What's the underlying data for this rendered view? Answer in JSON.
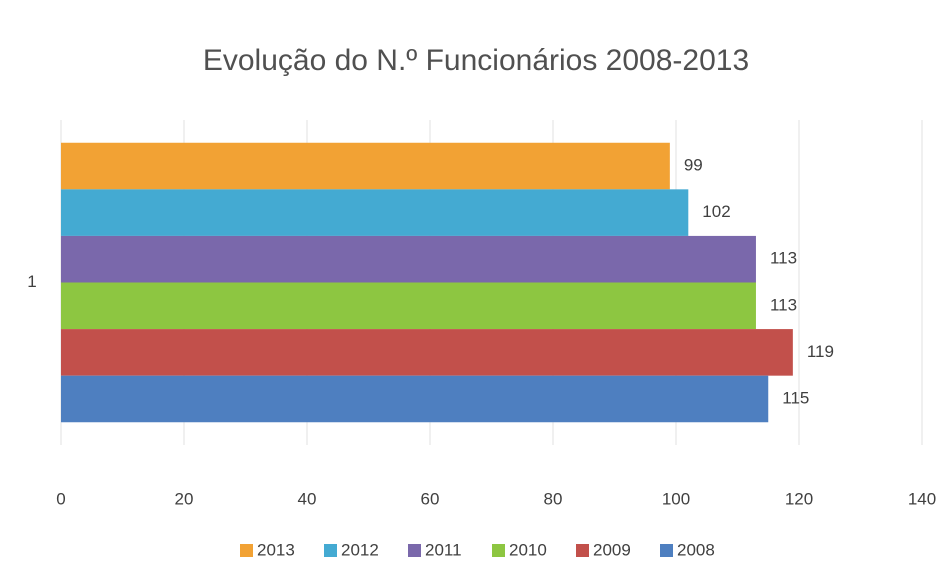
{
  "chart_data": {
    "type": "bar",
    "orientation": "horizontal",
    "title": "Evolução do N.º  Funcionários 2008-2013",
    "categories": [
      "1"
    ],
    "series": [
      {
        "name": "2013",
        "color": "#f2a234",
        "values": [
          99
        ]
      },
      {
        "name": "2012",
        "color": "#44aad2",
        "values": [
          102
        ]
      },
      {
        "name": "2011",
        "color": "#7a68ab",
        "values": [
          113
        ]
      },
      {
        "name": "2010",
        "color": "#8dc641",
        "values": [
          113
        ]
      },
      {
        "name": "2009",
        "color": "#c2504b",
        "values": [
          119
        ]
      },
      {
        "name": "2008",
        "color": "#4e7fc0",
        "values": [
          115
        ]
      }
    ],
    "xlim": [
      0,
      140
    ],
    "xticks": [
      0,
      20,
      40,
      60,
      80,
      100,
      120,
      140
    ],
    "grid": true,
    "legend": "bottom"
  }
}
